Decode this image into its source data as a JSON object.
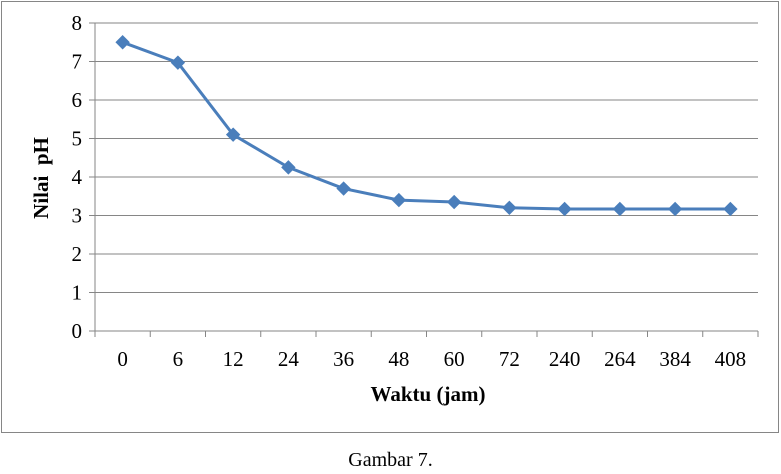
{
  "chart_data": {
    "type": "line",
    "title": "",
    "xlabel": "Waktu (jam)",
    "ylabel": "Nilai  pH",
    "categories": [
      "0",
      "6",
      "12",
      "24",
      "36",
      "48",
      "60",
      "72",
      "240",
      "264",
      "384",
      "408"
    ],
    "series": [
      {
        "values": [
          7.5,
          6.97,
          5.1,
          4.25,
          3.7,
          3.4,
          3.35,
          3.2,
          3.17,
          3.17,
          3.17,
          3.17
        ],
        "color": "#4a7ebb",
        "marker": "diamond"
      }
    ],
    "ylim": [
      0,
      8
    ],
    "yticks": [
      "0",
      "1",
      "2",
      "3",
      "4",
      "5",
      "6",
      "7",
      "8"
    ],
    "grid": true,
    "legend": "none"
  },
  "caption": "Gambar 7."
}
